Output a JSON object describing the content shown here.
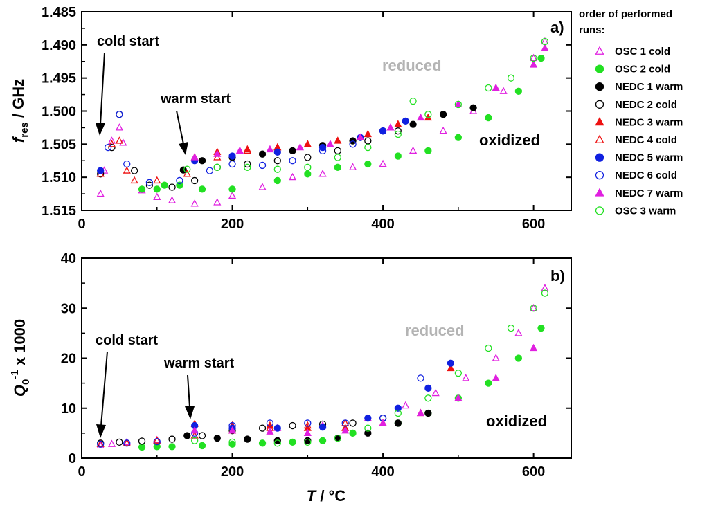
{
  "legend": {
    "title_line1": "order of performed",
    "title_line2": "runs:",
    "entries": [
      {
        "name": "OSC 1 cold",
        "marker": "triangle",
        "fill": false,
        "color": "#e020e0"
      },
      {
        "name": "OSC 2 cold",
        "marker": "circle",
        "fill": true,
        "color": "#22e022"
      },
      {
        "name": "NEDC 1 warm",
        "marker": "circle",
        "fill": true,
        "color": "#000000"
      },
      {
        "name": "NEDC 2 cold",
        "marker": "circle",
        "fill": false,
        "color": "#000000"
      },
      {
        "name": "NEDC 3 warm",
        "marker": "triangle",
        "fill": true,
        "color": "#ee1111"
      },
      {
        "name": "NEDC 4 cold",
        "marker": "triangle",
        "fill": false,
        "color": "#ee1111"
      },
      {
        "name": "NEDC 5 warm",
        "marker": "circle",
        "fill": true,
        "color": "#1020e0"
      },
      {
        "name": "NEDC 6 cold",
        "marker": "circle",
        "fill": false,
        "color": "#1020e0"
      },
      {
        "name": "NEDC 7 warm",
        "marker": "triangle",
        "fill": true,
        "color": "#e020e0"
      },
      {
        "name": "OSC 3 warm",
        "marker": "circle",
        "fill": false,
        "color": "#22e022"
      }
    ]
  },
  "chart_data": [
    {
      "type": "scatter",
      "panel_label": "a)",
      "xlabel": "",
      "ylabel_main": "f",
      "ylabel_sub": "res",
      "ylabel_rest": " / GHz",
      "xlim": [
        0,
        650
      ],
      "ylim": [
        1.485,
        1.515
      ],
      "y_inverted": true,
      "xticks": [
        0,
        200,
        400,
        600
      ],
      "yticks": [
        1.485,
        1.49,
        1.495,
        1.5,
        1.505,
        1.51,
        1.515
      ],
      "ytick_labels": [
        "1.485",
        "1.490",
        "1.495",
        "1.500",
        "1.505",
        "1.510",
        "1.515"
      ],
      "annotations": {
        "cold_start": "cold start",
        "warm_start": "warm start",
        "reduced": "reduced",
        "oxidized": "oxidized"
      },
      "series": [
        {
          "name": "OSC 1 cold",
          "x": [
            25,
            30,
            40,
            50,
            55,
            80,
            100,
            120,
            150,
            180,
            200,
            240,
            280,
            320,
            360,
            400,
            440,
            480,
            520,
            560,
            600,
            615
          ],
          "y": [
            1.5125,
            1.509,
            1.5045,
            1.5025,
            1.5048,
            1.512,
            1.513,
            1.5135,
            1.514,
            1.5138,
            1.5128,
            1.5115,
            1.51,
            1.5095,
            1.5085,
            1.508,
            1.506,
            1.503,
            1.5,
            1.497,
            1.492,
            1.4895
          ]
        },
        {
          "name": "OSC 2 cold",
          "x": [
            80,
            100,
            110,
            130,
            160,
            200,
            260,
            300,
            340,
            380,
            420,
            460,
            500,
            540,
            580,
            610
          ],
          "y": [
            1.5118,
            1.5118,
            1.5112,
            1.5112,
            1.5118,
            1.5118,
            1.5105,
            1.5095,
            1.5085,
            1.508,
            1.5068,
            1.506,
            1.504,
            1.501,
            1.497,
            1.492
          ]
        },
        {
          "name": "NEDC 1 warm",
          "x": [
            135,
            160,
            200,
            240,
            280,
            320,
            360,
            400,
            440,
            480,
            520
          ],
          "y": [
            1.5089,
            1.5075,
            1.507,
            1.5065,
            1.506,
            1.5052,
            1.5045,
            1.503,
            1.502,
            1.5005,
            1.4995
          ]
        },
        {
          "name": "NEDC 2 cold",
          "x": [
            25,
            40,
            50,
            70,
            90,
            120,
            150,
            180,
            220,
            260,
            300,
            340,
            380,
            420
          ],
          "y": [
            1.5095,
            1.5055,
            1.5005,
            1.509,
            1.5112,
            1.5115,
            1.5105,
            1.5085,
            1.508,
            1.5075,
            1.507,
            1.506,
            1.5045,
            1.503
          ]
        },
        {
          "name": "NEDC 3 warm",
          "x": [
            150,
            180,
            220,
            260,
            300,
            340,
            380,
            420,
            460
          ],
          "y": [
            1.507,
            1.5062,
            1.5058,
            1.5055,
            1.505,
            1.5045,
            1.5035,
            1.502,
            1.501
          ]
        },
        {
          "name": "NEDC 4 cold",
          "x": [
            25,
            40,
            50,
            60,
            70,
            100,
            140,
            180,
            220,
            260
          ],
          "y": [
            1.5095,
            1.505,
            1.5045,
            1.509,
            1.5105,
            1.5105,
            1.5095,
            1.507,
            1.506,
            1.5055
          ]
        },
        {
          "name": "NEDC 5 warm",
          "x": [
            25,
            150,
            200,
            260,
            320,
            370,
            400,
            430
          ],
          "y": [
            1.509,
            1.5075,
            1.5068,
            1.5062,
            1.5055,
            1.504,
            1.503,
            1.5015
          ]
        },
        {
          "name": "NEDC 6 cold",
          "x": [
            35,
            50,
            60,
            90,
            130,
            170,
            200,
            240,
            280,
            320,
            360,
            400
          ],
          "y": [
            1.5055,
            1.5005,
            1.508,
            1.5108,
            1.5105,
            1.509,
            1.508,
            1.5082,
            1.5075,
            1.506,
            1.505,
            1.503
          ]
        },
        {
          "name": "NEDC 7 warm",
          "x": [
            150,
            180,
            210,
            250,
            290,
            330,
            370,
            410,
            450,
            500,
            550,
            600,
            615
          ],
          "y": [
            1.507,
            1.5065,
            1.506,
            1.5058,
            1.5055,
            1.505,
            1.504,
            1.5025,
            1.501,
            1.499,
            1.4965,
            1.493,
            1.4905
          ]
        },
        {
          "name": "OSC 3 warm",
          "x": [
            140,
            180,
            220,
            260,
            300,
            340,
            380,
            420,
            440,
            460,
            500,
            540,
            570,
            600,
            615
          ],
          "y": [
            1.5088,
            1.5085,
            1.5085,
            1.5088,
            1.5085,
            1.507,
            1.5055,
            1.5035,
            1.4985,
            1.5005,
            1.499,
            1.4965,
            1.495,
            1.492,
            1.4895
          ]
        }
      ]
    },
    {
      "type": "scatter",
      "panel_label": "b)",
      "xlabel_main": "T",
      "xlabel_rest": " / °C",
      "ylabel_main": "Q",
      "ylabel_sub": "0",
      "ylabel_sup": "-1",
      "ylabel_rest": " x 1000",
      "xlim": [
        0,
        650
      ],
      "ylim": [
        0,
        40
      ],
      "xticks": [
        0,
        200,
        400,
        600
      ],
      "yticks": [
        0,
        10,
        20,
        30,
        40
      ],
      "annotations": {
        "cold_start": "cold start",
        "warm_start": "warm start",
        "reduced": "reduced",
        "oxidized": "oxidized"
      },
      "series": [
        {
          "name": "OSC 1 cold",
          "x": [
            25,
            40,
            60,
            100,
            150,
            200,
            260,
            320,
            380,
            430,
            470,
            510,
            550,
            580,
            600,
            615
          ],
          "y": [
            2.5,
            2.8,
            3.2,
            3.6,
            4.5,
            5.5,
            6.0,
            6.5,
            8.0,
            10.5,
            13.0,
            16.0,
            20.0,
            25.0,
            30.0,
            34.0
          ]
        },
        {
          "name": "OSC 2 cold",
          "x": [
            80,
            100,
            120,
            160,
            200,
            240,
            280,
            320,
            360,
            420,
            460,
            500,
            540,
            580,
            610
          ],
          "y": [
            2.2,
            2.3,
            2.3,
            2.5,
            2.8,
            3.0,
            3.2,
            3.5,
            5.0,
            7.0,
            9.0,
            12.0,
            15.0,
            20.0,
            26.0
          ]
        },
        {
          "name": "NEDC 1 warm",
          "x": [
            140,
            180,
            220,
            260,
            300,
            340,
            380,
            420,
            460
          ],
          "y": [
            4.5,
            4.0,
            3.8,
            3.5,
            3.5,
            4.0,
            5.0,
            7.0,
            9.0
          ]
        },
        {
          "name": "NEDC 2 cold",
          "x": [
            25,
            50,
            80,
            120,
            160,
            200,
            240,
            280,
            320,
            360,
            400
          ],
          "y": [
            3.0,
            3.2,
            3.4,
            3.8,
            4.5,
            5.5,
            6.0,
            6.5,
            6.8,
            7.0,
            8.0
          ]
        },
        {
          "name": "NEDC 3 warm",
          "x": [
            150,
            200,
            250,
            300,
            350,
            400,
            450,
            490
          ],
          "y": [
            6.8,
            6.5,
            6.5,
            6.0,
            6.0,
            7.0,
            9.0,
            18.0
          ]
        },
        {
          "name": "NEDC 4 cold",
          "x": [
            25,
            60,
            100,
            150,
            200,
            250,
            300,
            350
          ],
          "y": [
            2.8,
            3.0,
            3.5,
            4.5,
            5.5,
            6.0,
            6.5,
            7.0
          ]
        },
        {
          "name": "NEDC 5 warm",
          "x": [
            150,
            200,
            260,
            320,
            380,
            420,
            460,
            490
          ],
          "y": [
            6.5,
            6.0,
            6.0,
            6.2,
            8.0,
            10.0,
            14.0,
            19.0
          ]
        },
        {
          "name": "NEDC 6 cold",
          "x": [
            25,
            60,
            100,
            150,
            200,
            250,
            300,
            350,
            400,
            450
          ],
          "y": [
            2.8,
            3.0,
            3.3,
            5.0,
            6.5,
            7.0,
            7.0,
            7.0,
            8.0,
            16.0
          ]
        },
        {
          "name": "NEDC 7 warm",
          "x": [
            150,
            200,
            250,
            300,
            350,
            400,
            450,
            500,
            550,
            600
          ],
          "y": [
            5.5,
            5.5,
            5.3,
            5.0,
            5.5,
            7.0,
            9.0,
            12.0,
            16.0,
            22.0
          ]
        },
        {
          "name": "OSC 3 warm",
          "x": [
            150,
            200,
            260,
            300,
            340,
            380,
            420,
            460,
            500,
            540,
            570,
            600,
            615
          ],
          "y": [
            3.5,
            3.2,
            3.0,
            3.2,
            4.0,
            6.0,
            9.0,
            12.0,
            17.0,
            22.0,
            26.0,
            30.0,
            33.0
          ]
        }
      ]
    }
  ]
}
